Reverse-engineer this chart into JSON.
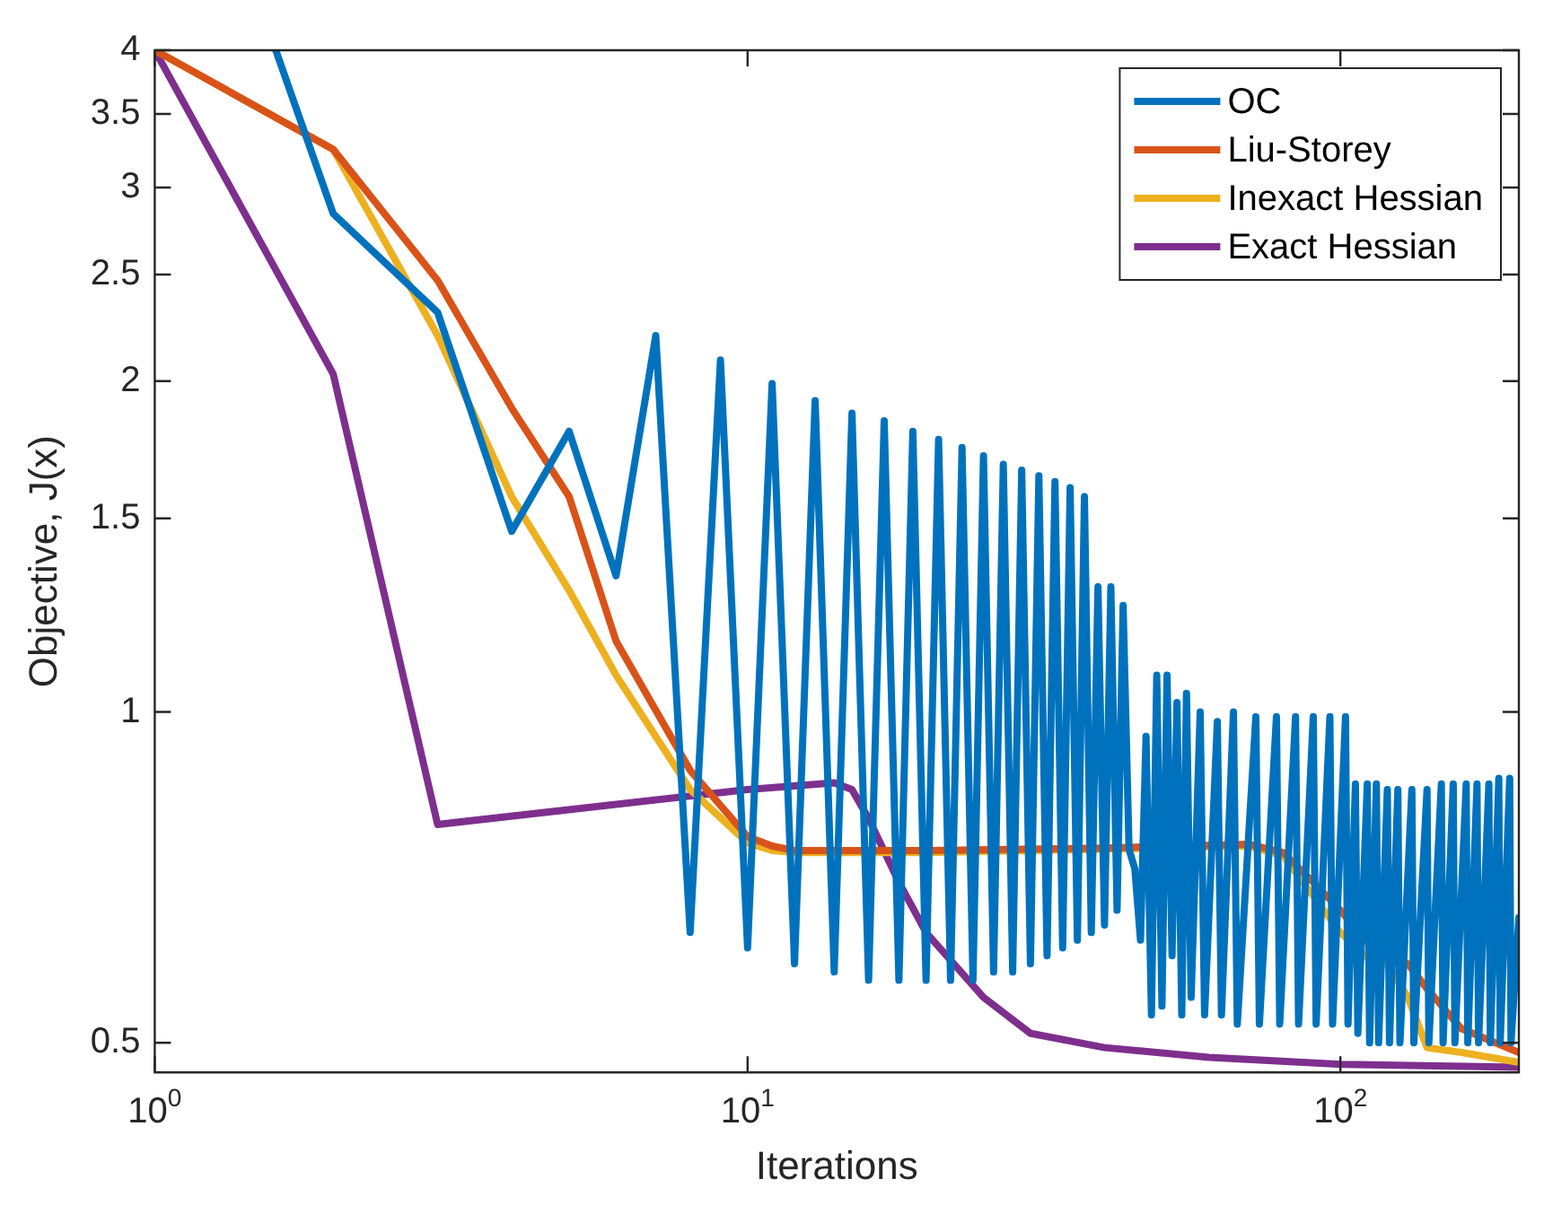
{
  "chart_data": {
    "type": "line",
    "xlabel": "Iterations",
    "ylabel": "Objective, J(x)",
    "log": "xy",
    "grid": false,
    "legend": "top right",
    "marker": "none",
    "line_style": "solid",
    "xlim": [
      1,
      200
    ],
    "xticks": [
      {
        "value": 1,
        "label": "10$^{0}$"
      },
      {
        "value": 10,
        "label": "10$^{1}$"
      },
      {
        "value": 100,
        "label": "10$^{2}$"
      }
    ],
    "ylim": [
      0.47,
      4
    ],
    "yticks": [
      0.5,
      1,
      1.5,
      2,
      2.5,
      3,
      3.5,
      4
    ],
    "series": [
      {
        "name": "OC",
        "color": "#0072bd",
        "x": [
          1.6,
          2,
          3,
          4,
          5,
          6,
          7,
          8,
          9,
          10,
          11,
          12,
          13,
          14,
          15,
          16,
          17,
          18,
          19,
          20,
          21,
          22,
          23,
          24,
          25,
          26,
          27,
          28,
          29,
          30,
          31,
          32,
          33,
          34,
          35,
          36,
          37,
          38,
          39,
          40,
          41,
          42,
          43,
          44,
          45,
          46,
          47,
          48,
          49,
          50,
          51,
          52,
          53,
          54,
          55,
          56,
          58,
          59,
          62,
          63,
          66,
          67,
          72,
          73,
          78,
          79,
          84,
          85,
          90,
          91,
          96,
          97,
          102,
          103,
          106,
          107,
          111,
          112,
          115,
          116,
          120,
          121,
          125,
          126,
          132,
          133,
          140,
          141,
          148,
          149,
          155,
          156,
          163,
          164,
          170,
          171,
          178,
          179,
          185,
          186,
          193,
          194,
          200
        ],
        "values": [
          4,
          2.84,
          2.31,
          1.46,
          1.8,
          1.33,
          2.2,
          0.63,
          2.09,
          0.61,
          1.99,
          0.59,
          1.92,
          0.58,
          1.87,
          0.57,
          1.84,
          0.57,
          1.8,
          0.57,
          1.77,
          0.57,
          1.74,
          0.57,
          1.71,
          0.58,
          1.68,
          0.58,
          1.66,
          0.59,
          1.64,
          0.6,
          1.62,
          0.61,
          1.6,
          0.62,
          1.57,
          0.63,
          1.3,
          0.64,
          1.3,
          0.66,
          1.25,
          0.75,
          0.72,
          0.62,
          0.95,
          0.53,
          1.08,
          0.54,
          1.08,
          0.6,
          1.02,
          0.53,
          1.04,
          0.55,
          1,
          0.53,
          0.98,
          0.53,
          1,
          0.52,
          0.99,
          0.52,
          0.99,
          0.52,
          0.99,
          0.52,
          0.99,
          0.52,
          0.99,
          0.52,
          0.99,
          0.52,
          0.86,
          0.51,
          0.86,
          0.5,
          0.86,
          0.5,
          0.85,
          0.5,
          0.85,
          0.5,
          0.85,
          0.5,
          0.85,
          0.5,
          0.86,
          0.5,
          0.86,
          0.5,
          0.86,
          0.5,
          0.86,
          0.5,
          0.86,
          0.5,
          0.87,
          0.5,
          0.87,
          0.5,
          0.65
        ]
      },
      {
        "name": "Liu-Storey",
        "color": "#d95319",
        "x": [
          1,
          2,
          3,
          4,
          5,
          6,
          8,
          10,
          11,
          12,
          20,
          40,
          70,
          80,
          90,
          100,
          110,
          120,
          130,
          140,
          160,
          200
        ],
        "values": [
          4,
          3.25,
          2.47,
          1.89,
          1.57,
          1.16,
          0.885,
          0.77,
          0.755,
          0.748,
          0.748,
          0.752,
          0.758,
          0.745,
          0.7,
          0.66,
          0.62,
          0.6,
          0.59,
          0.56,
          0.515,
          0.49
        ]
      },
      {
        "name": "Inexact Hessian",
        "color": "#edb120",
        "x": [
          1,
          2,
          3,
          4,
          5,
          6,
          8,
          10,
          11,
          12,
          20,
          40,
          70,
          80,
          90,
          100,
          110,
          120,
          130,
          140,
          160,
          200
        ],
        "values": [
          4,
          3.25,
          2.2,
          1.57,
          1.29,
          1.08,
          0.85,
          0.76,
          0.748,
          0.745,
          0.745,
          0.75,
          0.755,
          0.74,
          0.68,
          0.63,
          0.6,
          0.59,
          0.55,
          0.495,
          0.49,
          0.48
        ]
      },
      {
        "name": "Exact Hessian",
        "color": "#7e2f8e",
        "x": [
          1,
          2,
          3,
          10,
          14,
          15,
          16,
          18,
          20,
          25,
          30,
          40,
          60,
          100,
          200
        ],
        "values": [
          4,
          2.03,
          0.79,
          0.85,
          0.862,
          0.85,
          0.8,
          0.7,
          0.63,
          0.55,
          0.51,
          0.495,
          0.485,
          0.478,
          0.475
        ]
      }
    ]
  }
}
